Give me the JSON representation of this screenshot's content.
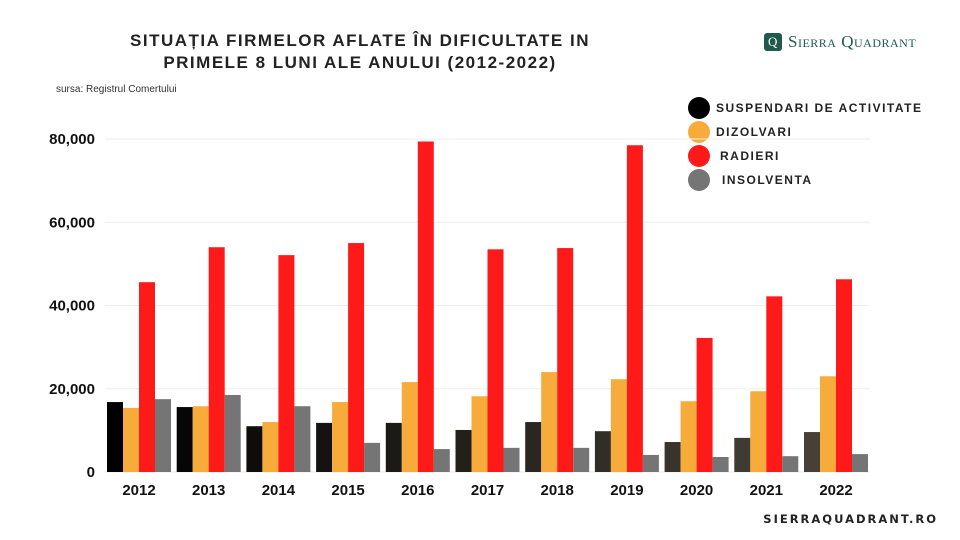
{
  "header": {
    "title_line1": "SITUAȚIA FIRMELOR AFLATE ÎN DIFICULTATE IN",
    "title_line2": "PRIMELE 8 LUNI ALE ANULUI (2012-2022)",
    "source": "sursa: Registrul Comertului",
    "logo_text": "Sierra Quadrant",
    "logo_mark": "Q"
  },
  "footer": {
    "website": "SIERRAQUADRANT.RO"
  },
  "chart_data": {
    "type": "bar",
    "title": "SITUAȚIA FIRMELOR AFLATE ÎN DIFICULTATE IN PRIMELE 8 LUNI ALE ANULUI (2012-2022)",
    "categories": [
      "2012",
      "2013",
      "2014",
      "2015",
      "2016",
      "2017",
      "2018",
      "2019",
      "2020",
      "2021",
      "2022"
    ],
    "series": [
      {
        "name": "SUSPENDARI DE ACTIVITATE",
        "color": "#1c1a17",
        "values": [
          16800,
          15600,
          11000,
          11800,
          11800,
          10100,
          12000,
          9800,
          7200,
          8200,
          9600
        ]
      },
      {
        "name": "DIZOLVARI",
        "color": "#f7ab3b",
        "values": [
          15400,
          15800,
          12000,
          16800,
          21600,
          18200,
          24000,
          22300,
          17000,
          19400,
          23000
        ]
      },
      {
        "name": "RADIERI",
        "color": "#ff1a1a",
        "values": [
          45600,
          54000,
          52100,
          55000,
          79400,
          53500,
          53800,
          78500,
          32200,
          42200,
          46300
        ]
      },
      {
        "name": "INSOLVENTA",
        "color": "#757575",
        "values": [
          17500,
          18500,
          15800,
          7000,
          5500,
          5800,
          5800,
          4100,
          3600,
          3800,
          4300
        ]
      }
    ],
    "yticks": [
      "0",
      "20,000",
      "40,000",
      "60,000",
      "80,000"
    ],
    "ytick_values": [
      0,
      20000,
      40000,
      60000,
      80000
    ],
    "ylim": [
      0,
      80000
    ],
    "xlabel": "",
    "ylabel": "",
    "grid": true,
    "legend": "top-right"
  }
}
